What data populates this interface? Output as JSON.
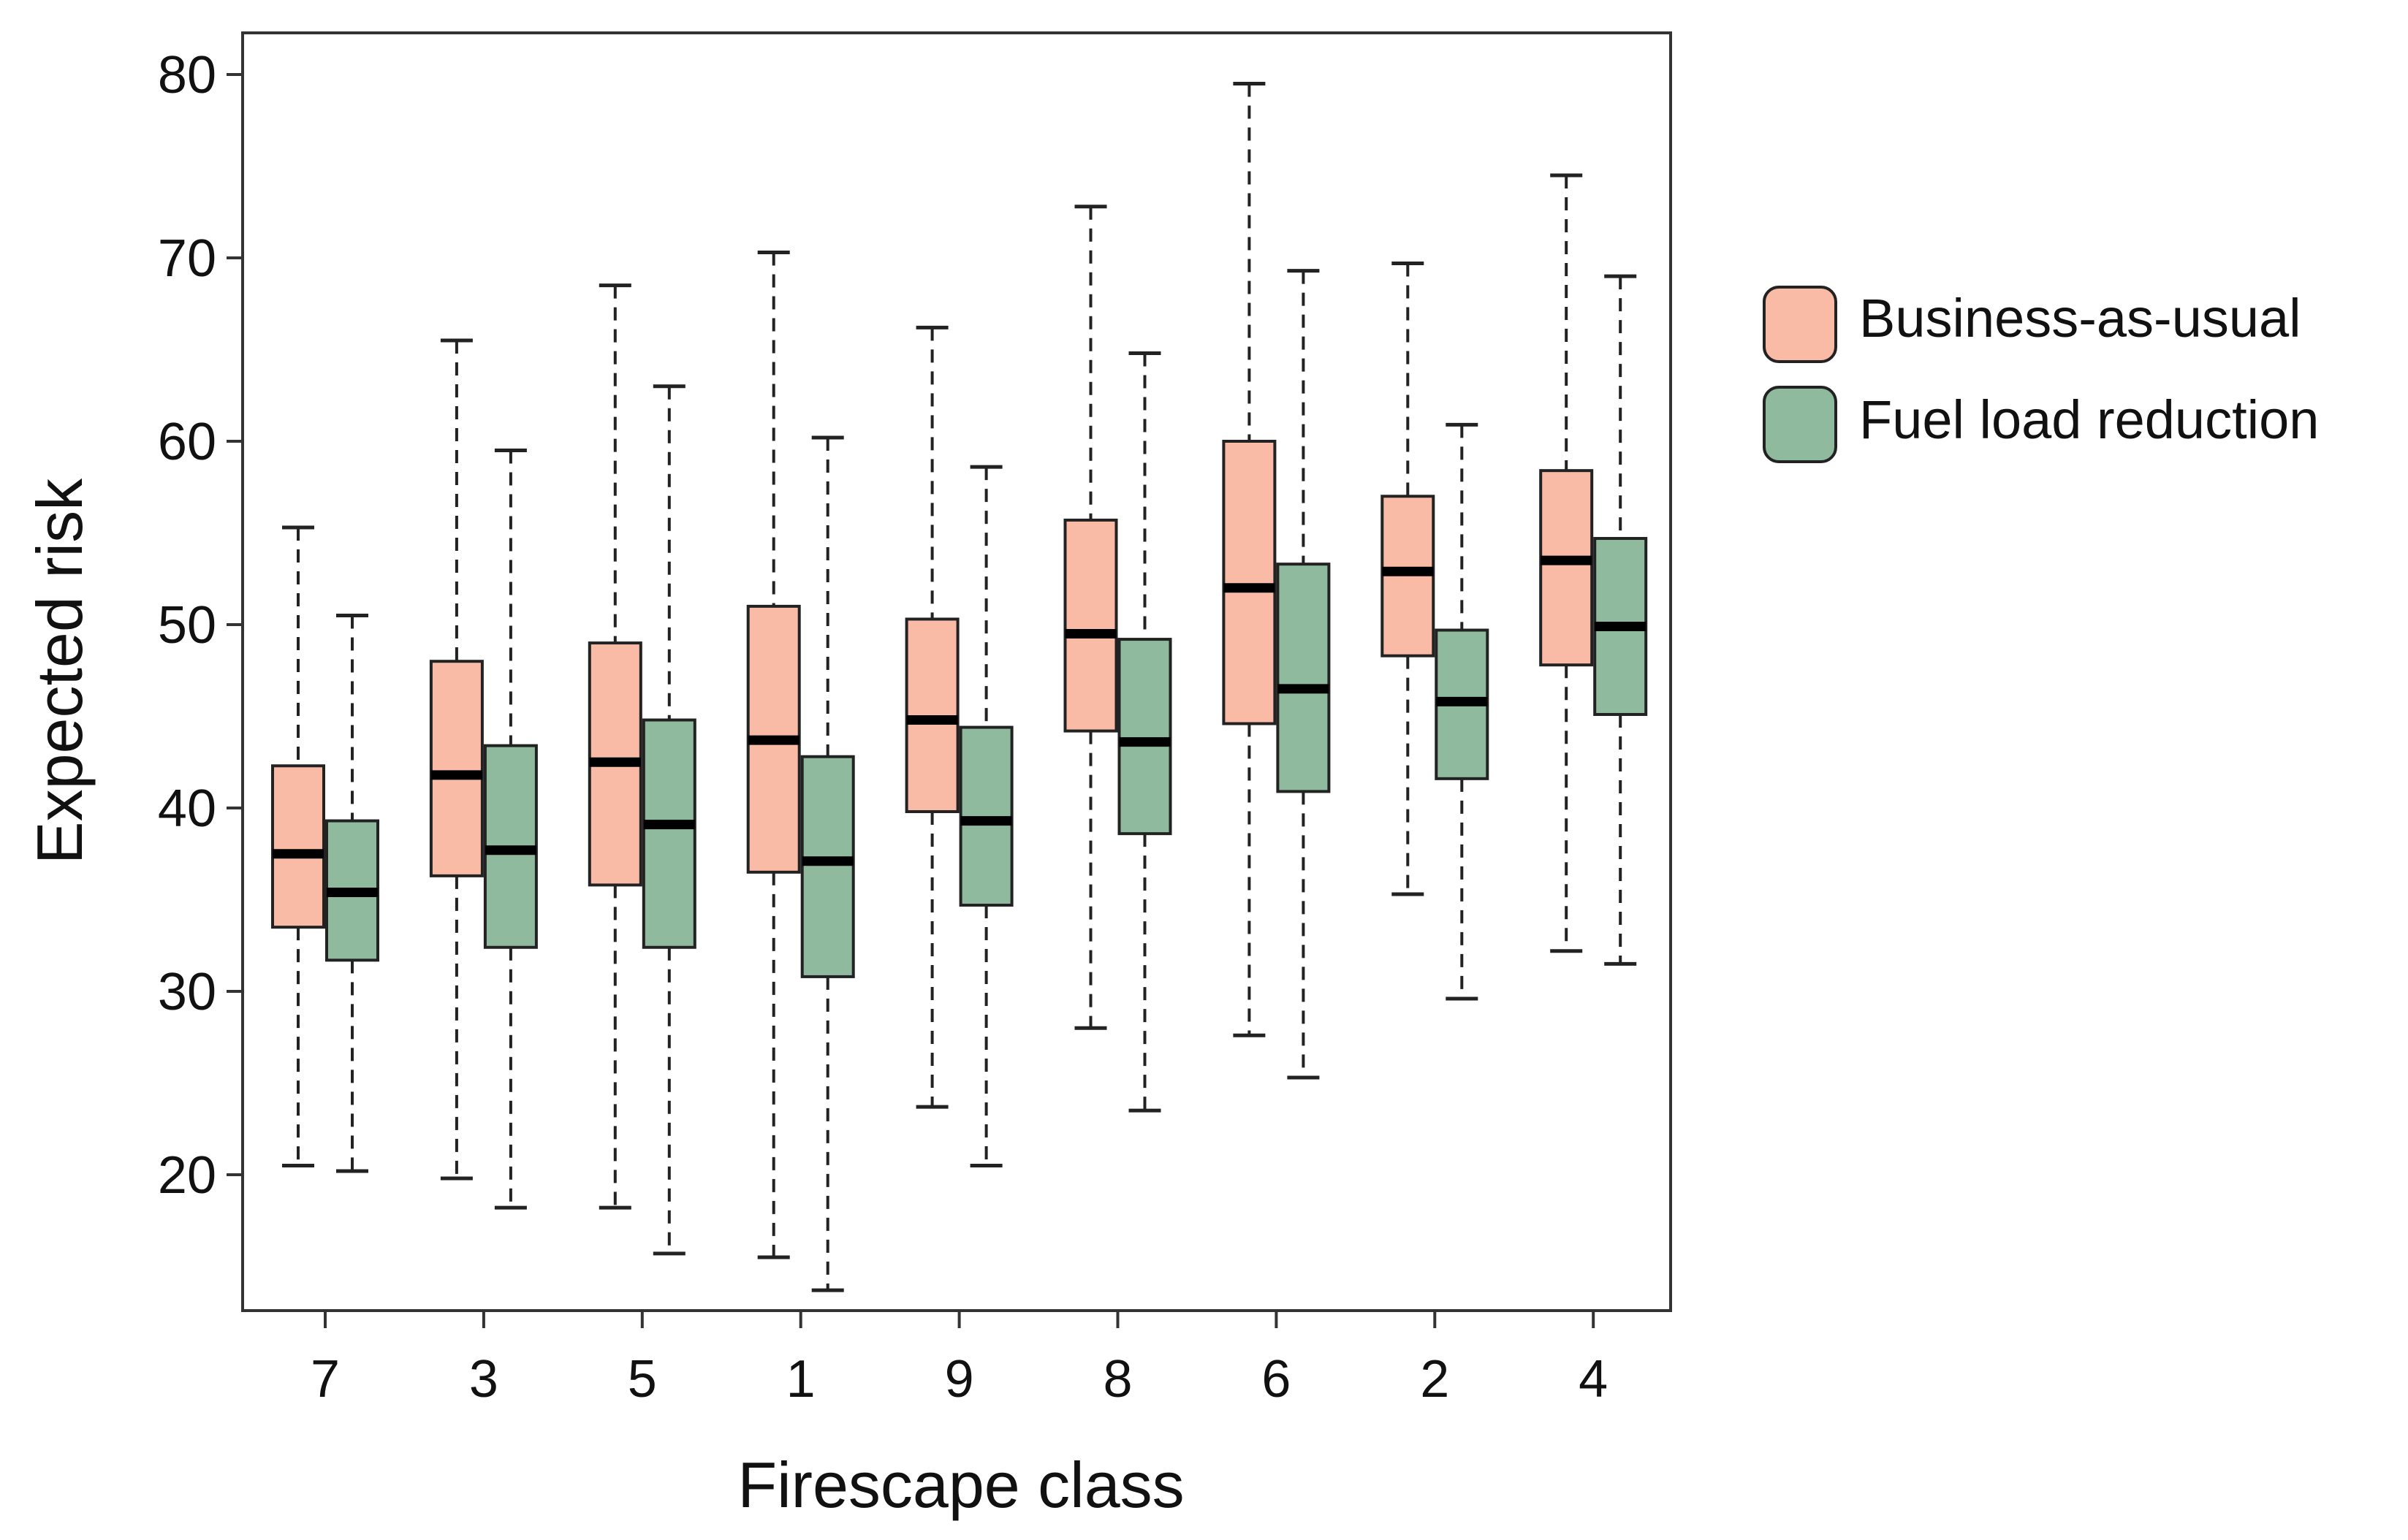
{
  "chart_data": {
    "type": "boxplot",
    "xlabel": "Firescape class",
    "ylabel": "Expected risk",
    "ylim": [
      13,
      82
    ],
    "yticks": [
      20,
      30,
      40,
      50,
      60,
      70,
      80
    ],
    "categories": [
      "7",
      "3",
      "5",
      "1",
      "9",
      "8",
      "6",
      "2",
      "4"
    ],
    "grid": false,
    "legend_position": "right",
    "series": [
      {
        "name": "Business-as-usual",
        "color": "#F9BBA6",
        "boxes": [
          {
            "whisker_low": 20.5,
            "q1": 33.5,
            "median": 37.5,
            "q3": 42.3,
            "whisker_high": 55.3
          },
          {
            "whisker_low": 19.8,
            "q1": 36.3,
            "median": 41.8,
            "q3": 48.0,
            "whisker_high": 65.5
          },
          {
            "whisker_low": 18.2,
            "q1": 35.8,
            "median": 42.5,
            "q3": 49.0,
            "whisker_high": 68.5
          },
          {
            "whisker_low": 15.5,
            "q1": 36.5,
            "median": 43.7,
            "q3": 51.0,
            "whisker_high": 70.3
          },
          {
            "whisker_low": 23.7,
            "q1": 39.8,
            "median": 44.8,
            "q3": 50.3,
            "whisker_high": 66.2
          },
          {
            "whisker_low": 28.0,
            "q1": 44.2,
            "median": 49.5,
            "q3": 55.7,
            "whisker_high": 72.8
          },
          {
            "whisker_low": 27.6,
            "q1": 44.6,
            "median": 52.0,
            "q3": 60.0,
            "whisker_high": 79.5
          },
          {
            "whisker_low": 35.3,
            "q1": 48.3,
            "median": 52.9,
            "q3": 57.0,
            "whisker_high": 69.7
          },
          {
            "whisker_low": 32.2,
            "q1": 47.8,
            "median": 53.5,
            "q3": 58.4,
            "whisker_high": 74.5
          }
        ]
      },
      {
        "name": "Fuel load reduction",
        "color": "#8FBA9E",
        "boxes": [
          {
            "whisker_low": 20.2,
            "q1": 31.7,
            "median": 35.4,
            "q3": 39.3,
            "whisker_high": 50.5
          },
          {
            "whisker_low": 18.2,
            "q1": 32.4,
            "median": 37.7,
            "q3": 43.4,
            "whisker_high": 59.5
          },
          {
            "whisker_low": 15.7,
            "q1": 32.4,
            "median": 39.1,
            "q3": 44.8,
            "whisker_high": 63.0
          },
          {
            "whisker_low": 13.7,
            "q1": 30.8,
            "median": 37.1,
            "q3": 42.8,
            "whisker_high": 60.2
          },
          {
            "whisker_low": 20.5,
            "q1": 34.7,
            "median": 39.3,
            "q3": 44.4,
            "whisker_high": 58.6
          },
          {
            "whisker_low": 23.5,
            "q1": 38.6,
            "median": 43.6,
            "q3": 49.2,
            "whisker_high": 64.8
          },
          {
            "whisker_low": 25.3,
            "q1": 40.9,
            "median": 46.5,
            "q3": 53.3,
            "whisker_high": 69.3
          },
          {
            "whisker_low": 29.6,
            "q1": 41.6,
            "median": 45.8,
            "q3": 49.7,
            "whisker_high": 60.9
          },
          {
            "whisker_low": 31.5,
            "q1": 45.1,
            "median": 49.9,
            "q3": 54.7,
            "whisker_high": 69.0
          }
        ]
      }
    ]
  }
}
